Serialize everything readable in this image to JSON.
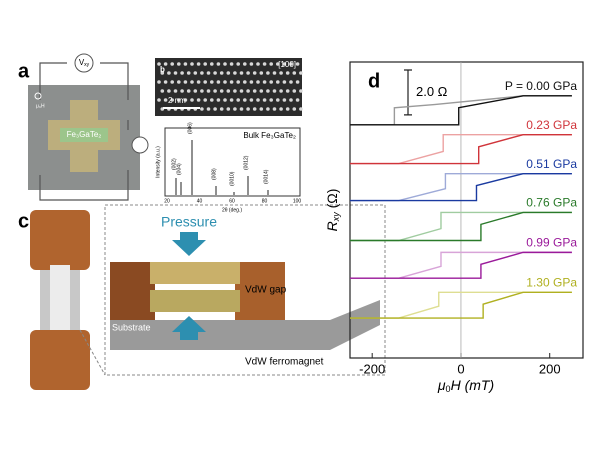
{
  "panels": {
    "a": {
      "letter": "a",
      "voltmeter": {
        "main": "V",
        "sub": "xy"
      },
      "field": "μ₀H",
      "sample": "Fe₃GaTe₂"
    },
    "b": {
      "letter": "b",
      "direction": "[100]",
      "scale": "2 nm",
      "xrd_title": "Bulk Fe₃GaTe₂",
      "xrd_ylabel": "Intensity (a.u.)",
      "xrd_xlabel": "2θ (deg.)",
      "xrd_xticks": [
        "20",
        "40",
        "60",
        "80",
        "100"
      ],
      "peaks": [
        "(002)",
        "(004)",
        "(006)",
        "(008)",
        "(0010)",
        "(0012)",
        "(0014)"
      ]
    },
    "c": {
      "letter": "c",
      "pressure": "Pressure",
      "gap": "VdW gap",
      "substrate": "Substrate",
      "material": "VdW ferromagnet"
    }
  },
  "chart_data": {
    "type": "hysteresis",
    "letter": "d",
    "xlabel": {
      "main": "μ",
      "sub": "0",
      "rest": "H (mT)"
    },
    "ylabel": {
      "main": "R",
      "sub": "xy",
      "unit": " (Ω)"
    },
    "xlim": [
      -250,
      275
    ],
    "ylim": [
      0,
      13.2
    ],
    "xticks": [
      -200,
      0,
      200
    ],
    "scale_bar": {
      "value": 2.0,
      "label": "2.0 Ω"
    },
    "series": [
      {
        "name": "P = 0.00 GPa",
        "color": "#111111",
        "x": [
          -250,
          -5,
          -5,
          140,
          250
        ],
        "values": [
          10.4,
          10.4,
          11.16,
          11.69,
          11.69
        ],
        "return_branch": {
          "color": "#9a9a9a",
          "x": [
            250,
            140,
            -60,
            -150,
            -150,
            -250
          ],
          "values": [
            11.69,
            11.69,
            11.3,
            11.16,
            10.4,
            10.4
          ]
        }
      },
      {
        "name": "0.23 GPa",
        "color": "#d0343a",
        "x": [
          -250,
          40,
          40,
          140,
          250
        ],
        "values": [
          8.67,
          8.67,
          9.42,
          9.96,
          9.96
        ],
        "return_branch": {
          "color": "#eca2a2",
          "x": [
            250,
            -40,
            -40,
            -140,
            -250
          ],
          "values": [
            9.96,
            9.96,
            9.21,
            8.67,
            8.67
          ]
        }
      },
      {
        "name": "0.51 GPa",
        "color": "#1a3aa0",
        "x": [
          -250,
          35,
          35,
          140,
          250
        ],
        "values": [
          7.02,
          7.02,
          7.69,
          8.22,
          8.22
        ],
        "return_branch": {
          "color": "#9eaad8",
          "x": [
            250,
            -35,
            -35,
            -140,
            -250
          ],
          "values": [
            8.22,
            8.22,
            7.55,
            7.02,
            7.02
          ]
        }
      },
      {
        "name": "0.76 GPa",
        "color": "#2a7a2a",
        "x": [
          -250,
          45,
          45,
          140,
          250
        ],
        "values": [
          5.24,
          5.24,
          5.96,
          6.49,
          6.49
        ],
        "return_branch": {
          "color": "#a0cca0",
          "x": [
            250,
            -45,
            -45,
            -140,
            -250
          ],
          "values": [
            6.49,
            6.49,
            5.77,
            5.24,
            5.24
          ]
        }
      },
      {
        "name": "0.99 GPa",
        "color": "#9a1a9a",
        "x": [
          -250,
          45,
          45,
          140,
          250
        ],
        "values": [
          3.56,
          3.56,
          4.18,
          4.71,
          4.71
        ],
        "return_branch": {
          "color": "#d8a4d8",
          "x": [
            250,
            -45,
            -45,
            -140,
            -250
          ],
          "values": [
            4.71,
            4.71,
            4.09,
            3.56,
            3.56
          ]
        }
      },
      {
        "name": "1.30 GPa",
        "color": "#b0b020",
        "x": [
          -250,
          50,
          50,
          140,
          250
        ],
        "values": [
          1.78,
          1.78,
          2.4,
          2.93,
          2.93
        ],
        "return_branch": {
          "color": "#dede92",
          "x": [
            250,
            -50,
            -50,
            -140,
            -250
          ],
          "values": [
            2.93,
            2.93,
            2.31,
            1.78,
            1.78
          ]
        }
      }
    ]
  }
}
